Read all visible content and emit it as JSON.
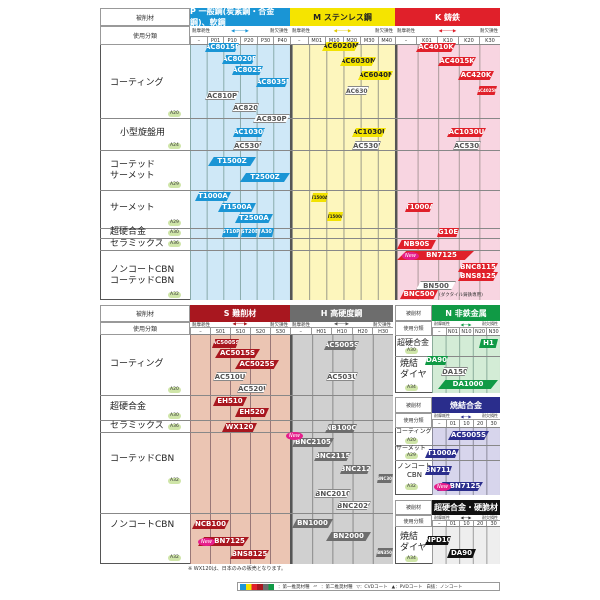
{
  "top": {
    "material_label": "被削材",
    "class_label": "使用分類",
    "wear": "耐摩耗性",
    "tough": "耐欠損性",
    "p": {
      "title": "P 一般鋼(炭素鋼・合金鋼)、軟鋼",
      "color": "#1a95d5",
      "cols": [
        "–",
        "P01",
        "P10",
        "P20",
        "P30",
        "P40"
      ],
      "chips": [
        "AC8015P",
        "AC8020P",
        "AC8025P",
        "AC8035P",
        "AC810P",
        "AC820P",
        "AC830P",
        "AC1030U",
        "AC530U",
        "T1500Z",
        "T2500Z",
        "T1000A",
        "T1500A",
        "T2500A",
        "ST10P",
        "ST20E",
        "A30"
      ]
    },
    "m": {
      "title": "M ステンレス鋼",
      "color": "#f2e200",
      "cols": [
        "–",
        "M01",
        "M10",
        "M20",
        "M30",
        "M40"
      ],
      "chips": [
        "AC6020M",
        "AC6030M",
        "AC6040M",
        "AC630M",
        "AC1030U",
        "AC530U",
        "T1500A",
        "T1500A"
      ]
    },
    "k": {
      "title": "K 鋳鉄",
      "color": "#e0202a",
      "cols": [
        "–",
        "K01",
        "K10",
        "K20",
        "K30"
      ],
      "chips": [
        "AC4010K",
        "AC4015K",
        "AC420K",
        "AC4025K",
        "AC1030U",
        "AC530U",
        "T1000A",
        "G10E",
        "NB90S",
        "BN7125",
        "BNC8115",
        "BNS8125",
        "BN500",
        "BNC500"
      ],
      "bnc500_note": "(ダクタイル鋳鉄専用)"
    },
    "rows": [
      {
        "label": "コーティング",
        "ref": "A20"
      },
      {
        "label": "小型旋盤用",
        "ref": "A24"
      },
      {
        "label": "コーテッド\nサーメット",
        "ref": "A29"
      },
      {
        "label": "サーメット",
        "ref": "A29"
      },
      {
        "label": "超硬合金",
        "ref": "A30"
      },
      {
        "label": "セラミックス",
        "ref": "A36"
      },
      {
        "label": "ノンコートCBN\nコーテッドCBN",
        "ref": "A32"
      }
    ]
  },
  "bottom": {
    "material_label": "被削材",
    "class_label": "使用分類",
    "wear": "耐摩耗性",
    "tough": "耐欠損性",
    "s": {
      "title": "S 難削材",
      "color": "#a8171f",
      "cols": [
        "–",
        "S01",
        "S10",
        "S20",
        "S30"
      ],
      "chips": [
        "AC5005S",
        "AC5015S",
        "AC5025S",
        "AC510U",
        "AC520U",
        "EH510",
        "EH520",
        "WX120",
        "NCB100",
        "BN7125",
        "BNS8125"
      ]
    },
    "h": {
      "title": "H 高硬度鋼",
      "color": "#6d6d6d",
      "cols": [
        "–",
        "H01",
        "H10",
        "H20",
        "H30"
      ],
      "chips": [
        "AC5005S",
        "AC503U",
        "NB100C",
        "BNC2105",
        "BNC2115",
        "BNC2125",
        "BNC300",
        "BNC2010",
        "BNC2020",
        "BN1000",
        "BN2000",
        "BN350"
      ]
    },
    "rows": [
      {
        "label": "コーティング",
        "ref": "A20"
      },
      {
        "label": "超硬合金",
        "ref": "A30"
      },
      {
        "label": "セラミックス",
        "ref": "A36"
      },
      {
        "label": "コーテッドCBN",
        "ref": "A32"
      },
      {
        "label": "ノンコートCBN",
        "ref": "A32"
      }
    ],
    "n": {
      "title": "N 非鉄金属",
      "color": "#109a45",
      "cols": [
        "–",
        "N01",
        "N10",
        "N20",
        "N30"
      ],
      "rows": [
        {
          "label": "超硬合金",
          "ref": "A30"
        },
        {
          "label": "焼結\nダイヤ",
          "ref": "A34"
        }
      ],
      "chips": [
        "H1",
        "DA90",
        "DA150",
        "DA1000"
      ]
    },
    "sinter": {
      "title": "焼結合金",
      "color": "#2a2d8c",
      "cols": [
        "–",
        "01",
        "10",
        "20",
        "30"
      ],
      "rows": [
        {
          "label": "コーティング",
          "ref": "A20"
        },
        {
          "label": "サーメット",
          "ref": "A29"
        },
        {
          "label": "ノンコート\nCBN",
          "ref": "A32"
        }
      ],
      "chips": [
        "AC5005S",
        "T1000A",
        "BN7115",
        "BN7125"
      ]
    },
    "carbide": {
      "title": "超硬合金・硬脆材",
      "color": "#111111",
      "cols": [
        "–",
        "01",
        "10",
        "20",
        "30"
      ],
      "rows": [
        {
          "label": "焼結\nダイヤ",
          "ref": "A34"
        }
      ],
      "chips": [
        "NPD10",
        "DA90"
      ]
    }
  },
  "new_badge": "New",
  "footnote": "※ WX120は、日本のみの販売となります。",
  "legend": {
    "first": "：第一推奨材種",
    "second": "：第二推奨材種",
    "cvd": "▽：CVDコート",
    "pvd": "▲：PVDコート",
    "white": "白抜：ノンコート"
  }
}
